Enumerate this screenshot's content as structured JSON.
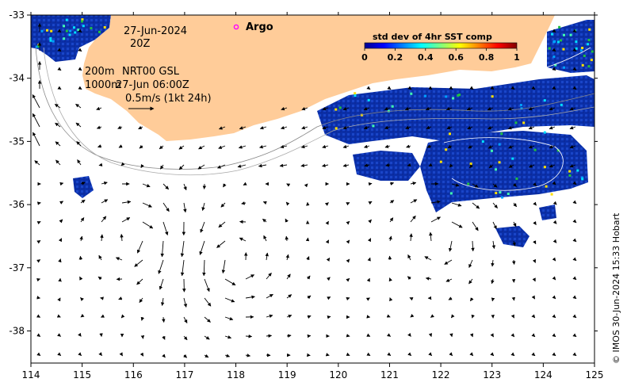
{
  "map": {
    "date_line1": "27-Jun-2024",
    "date_line2": "20Z",
    "argo_label": "Argo",
    "depth_line1": "200m",
    "depth_line2": "1000m",
    "model_label": "NRT00 GSL",
    "model_time": "27-Jun 06:00Z",
    "scale_label": "0.5m/s (1kt 24h)",
    "credit": "© IMOS 30-Jun-2024 15:33 Hobart",
    "land_color": "#ffcc99",
    "argo_color": "#ff00ff"
  },
  "colorbar": {
    "title": "std dev of 4hr SST comp",
    "ticks": [
      "0",
      "0.2",
      "0.4",
      "0.6",
      "0.8",
      "1"
    ]
  },
  "axes": {
    "x_ticks": [
      "114",
      "115",
      "116",
      "117",
      "118",
      "119",
      "120",
      "121",
      "122",
      "123",
      "124",
      "125"
    ],
    "y_ticks": [
      "-33",
      "-34",
      "-35",
      "-36",
      "-37",
      "-38"
    ]
  }
}
